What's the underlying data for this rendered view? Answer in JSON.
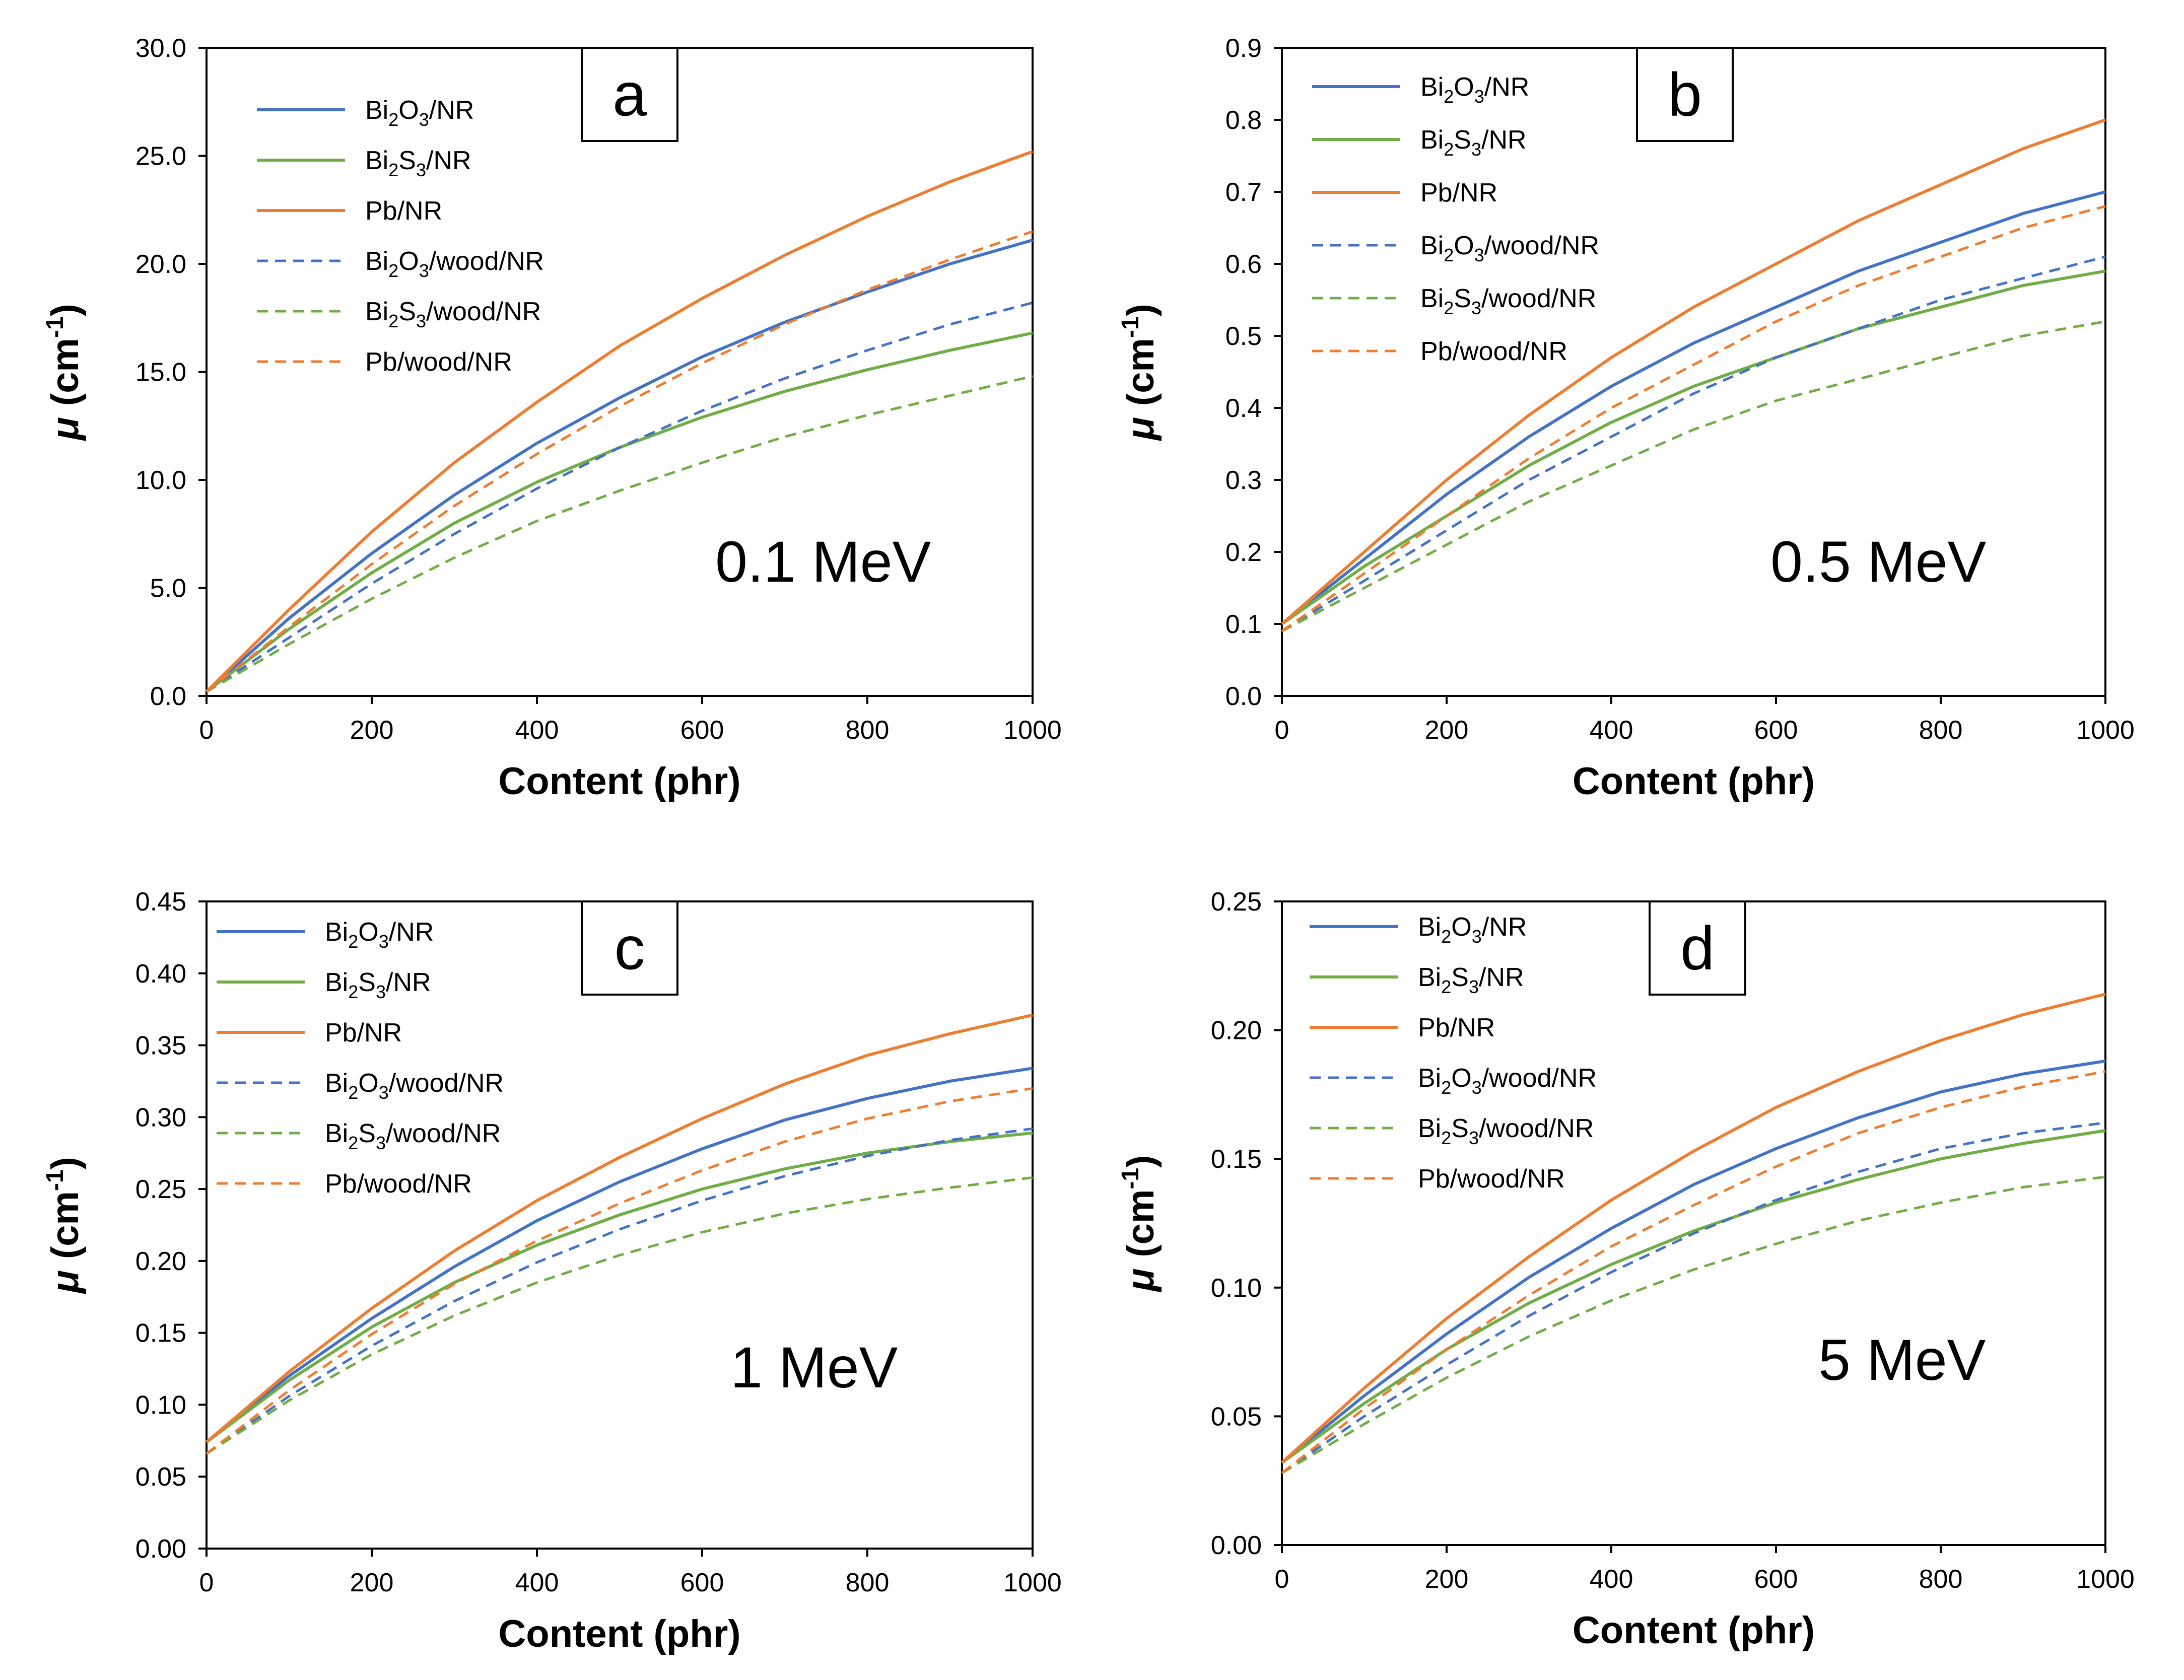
{
  "x_title": "Content (phr)",
  "y_title_symbol": "μ",
  "y_title_unit_pre": "(cm",
  "y_title_unit_sup": "-1",
  "y_title_unit_post": ")",
  "legend_labels": [
    {
      "name": "Bi2O3/NR",
      "segments": [
        [
          "Bi",
          false
        ],
        [
          "2",
          true
        ],
        [
          "O",
          false
        ],
        [
          "3",
          true
        ],
        [
          "/NR",
          false
        ]
      ]
    },
    {
      "name": "Bi2S3/NR",
      "segments": [
        [
          "Bi",
          false
        ],
        [
          "2",
          true
        ],
        [
          "S",
          false
        ],
        [
          "3",
          true
        ],
        [
          "/NR",
          false
        ]
      ]
    },
    {
      "name": "Pb/NR",
      "segments": [
        [
          "Pb/NR",
          false
        ]
      ]
    },
    {
      "name": "Bi2O3/wood/NR",
      "segments": [
        [
          "Bi",
          false
        ],
        [
          "2",
          true
        ],
        [
          "O",
          false
        ],
        [
          "3",
          true
        ],
        [
          "/wood/NR",
          false
        ]
      ]
    },
    {
      "name": "Bi2S3/wood/NR",
      "segments": [
        [
          "Bi",
          false
        ],
        [
          "2",
          true
        ],
        [
          "S",
          false
        ],
        [
          "3",
          true
        ],
        [
          "/wood/NR",
          false
        ]
      ]
    },
    {
      "name": "Pb/wood/NR",
      "segments": [
        [
          "Pb/wood/NR",
          false
        ]
      ]
    }
  ],
  "series_styles": [
    {
      "color": "#4472C4",
      "dashed": false
    },
    {
      "color": "#70AD47",
      "dashed": false
    },
    {
      "color": "#ED7D31",
      "dashed": false
    },
    {
      "color": "#4472C4",
      "dashed": true
    },
    {
      "color": "#70AD47",
      "dashed": true
    },
    {
      "color": "#ED7D31",
      "dashed": true
    }
  ],
  "chart_data": [
    {
      "type": "line",
      "panel_label": "a",
      "energy_label": "0.1 MeV",
      "xlabel": "Content (phr)",
      "ylabel": "μ (cm-1)",
      "xlim": [
        0,
        1000
      ],
      "ylim": [
        0,
        30
      ],
      "x_ticks": [
        0,
        200,
        400,
        600,
        800,
        1000
      ],
      "y_ticks": [
        "0.0",
        "5.0",
        "10.0",
        "15.0",
        "20.0",
        "25.0",
        "30.0"
      ],
      "x": [
        0,
        100,
        200,
        300,
        400,
        500,
        600,
        700,
        800,
        900,
        1000
      ],
      "series": [
        {
          "name": "Bi2O3/NR",
          "values": [
            0.2,
            3.6,
            6.6,
            9.3,
            11.7,
            13.8,
            15.7,
            17.3,
            18.7,
            20.0,
            21.1
          ]
        },
        {
          "name": "Bi2S3/NR",
          "values": [
            0.2,
            3.1,
            5.7,
            8.0,
            9.9,
            11.5,
            12.9,
            14.1,
            15.1,
            16.0,
            16.8
          ]
        },
        {
          "name": "Pb/NR",
          "values": [
            0.2,
            4.0,
            7.6,
            10.8,
            13.6,
            16.2,
            18.4,
            20.4,
            22.2,
            23.8,
            25.2
          ]
        },
        {
          "name": "Bi2O3/wood/NR",
          "values": [
            0.2,
            2.7,
            5.2,
            7.5,
            9.6,
            11.5,
            13.2,
            14.7,
            16.0,
            17.2,
            18.2
          ]
        },
        {
          "name": "Bi2S3/wood/NR",
          "values": [
            0.2,
            2.4,
            4.5,
            6.4,
            8.1,
            9.5,
            10.8,
            12.0,
            13.0,
            13.9,
            14.8
          ]
        },
        {
          "name": "Pb/wood/NR",
          "values": [
            0.2,
            3.2,
            6.1,
            8.8,
            11.2,
            13.4,
            15.4,
            17.2,
            18.8,
            20.2,
            21.5
          ]
        }
      ]
    },
    {
      "type": "line",
      "panel_label": "b",
      "energy_label": "0.5 MeV",
      "xlabel": "Content (phr)",
      "ylabel": "μ (cm-1)",
      "xlim": [
        0,
        1000
      ],
      "ylim": [
        0,
        0.9
      ],
      "x_ticks": [
        0,
        200,
        400,
        600,
        800,
        1000
      ],
      "y_ticks": [
        "0.0",
        "0.1",
        "0.2",
        "0.3",
        "0.4",
        "0.5",
        "0.6",
        "0.7",
        "0.8",
        "0.9"
      ],
      "x": [
        0,
        100,
        200,
        300,
        400,
        500,
        600,
        700,
        800,
        900,
        1000
      ],
      "series": [
        {
          "name": "Bi2O3/NR",
          "values": [
            0.1,
            0.19,
            0.28,
            0.36,
            0.43,
            0.49,
            0.54,
            0.59,
            0.63,
            0.67,
            0.7
          ]
        },
        {
          "name": "Bi2S3/NR",
          "values": [
            0.1,
            0.18,
            0.25,
            0.32,
            0.38,
            0.43,
            0.47,
            0.51,
            0.54,
            0.57,
            0.59
          ]
        },
        {
          "name": "Pb/NR",
          "values": [
            0.1,
            0.2,
            0.3,
            0.39,
            0.47,
            0.54,
            0.6,
            0.66,
            0.71,
            0.76,
            0.8
          ]
        },
        {
          "name": "Bi2O3/wood/NR",
          "values": [
            0.09,
            0.16,
            0.23,
            0.3,
            0.36,
            0.42,
            0.47,
            0.51,
            0.55,
            0.58,
            0.61
          ]
        },
        {
          "name": "Bi2S3/wood/NR",
          "values": [
            0.09,
            0.15,
            0.21,
            0.27,
            0.32,
            0.37,
            0.41,
            0.44,
            0.47,
            0.5,
            0.52
          ]
        },
        {
          "name": "Pb/wood/NR",
          "values": [
            0.09,
            0.17,
            0.25,
            0.33,
            0.4,
            0.46,
            0.52,
            0.57,
            0.61,
            0.65,
            0.68
          ]
        }
      ]
    },
    {
      "type": "line",
      "panel_label": "c",
      "energy_label": "1 MeV",
      "xlabel": "Content (phr)",
      "ylabel": "μ (cm-1)",
      "xlim": [
        0,
        1000
      ],
      "ylim": [
        0,
        0.45
      ],
      "x_ticks": [
        0,
        200,
        400,
        600,
        800,
        1000
      ],
      "y_ticks": [
        "0.00",
        "0.05",
        "0.10",
        "0.15",
        "0.20",
        "0.25",
        "0.30",
        "0.35",
        "0.40",
        "0.45"
      ],
      "x": [
        0,
        100,
        200,
        300,
        400,
        500,
        600,
        700,
        800,
        900,
        1000
      ],
      "series": [
        {
          "name": "Bi2O3/NR",
          "values": [
            0.074,
            0.12,
            0.16,
            0.196,
            0.228,
            0.255,
            0.278,
            0.298,
            0.313,
            0.325,
            0.334
          ]
        },
        {
          "name": "Bi2S3/NR",
          "values": [
            0.074,
            0.117,
            0.154,
            0.185,
            0.211,
            0.232,
            0.25,
            0.264,
            0.275,
            0.283,
            0.289
          ]
        },
        {
          "name": "Pb/NR",
          "values": [
            0.074,
            0.123,
            0.167,
            0.207,
            0.242,
            0.272,
            0.299,
            0.323,
            0.343,
            0.358,
            0.371
          ]
        },
        {
          "name": "Bi2O3/wood/NR",
          "values": [
            0.066,
            0.106,
            0.141,
            0.172,
            0.199,
            0.222,
            0.242,
            0.259,
            0.273,
            0.284,
            0.292
          ]
        },
        {
          "name": "Bi2S3/wood/NR",
          "values": [
            0.066,
            0.103,
            0.135,
            0.162,
            0.185,
            0.204,
            0.22,
            0.233,
            0.243,
            0.251,
            0.258
          ]
        },
        {
          "name": "Pb/wood/NR",
          "values": [
            0.066,
            0.11,
            0.149,
            0.184,
            0.214,
            0.24,
            0.263,
            0.283,
            0.299,
            0.311,
            0.32
          ]
        }
      ]
    },
    {
      "type": "line",
      "panel_label": "d",
      "energy_label": "5 MeV",
      "xlabel": "Content (phr)",
      "ylabel": "μ (cm-1)",
      "xlim": [
        0,
        1000
      ],
      "ylim": [
        0,
        0.25
      ],
      "x_ticks": [
        0,
        200,
        400,
        600,
        800,
        1000
      ],
      "y_ticks": [
        "0.00",
        "0.05",
        "0.10",
        "0.15",
        "0.20",
        "0.25"
      ],
      "x": [
        0,
        100,
        200,
        300,
        400,
        500,
        600,
        700,
        800,
        900,
        1000
      ],
      "series": [
        {
          "name": "Bi2O3/NR",
          "values": [
            0.032,
            0.058,
            0.082,
            0.104,
            0.123,
            0.14,
            0.154,
            0.166,
            0.176,
            0.183,
            0.188
          ]
        },
        {
          "name": "Bi2S3/NR",
          "values": [
            0.032,
            0.055,
            0.076,
            0.094,
            0.109,
            0.122,
            0.133,
            0.142,
            0.15,
            0.156,
            0.161
          ]
        },
        {
          "name": "Pb/NR",
          "values": [
            0.032,
            0.061,
            0.088,
            0.112,
            0.134,
            0.153,
            0.17,
            0.184,
            0.196,
            0.206,
            0.214
          ]
        },
        {
          "name": "Bi2O3/wood/NR",
          "values": [
            0.028,
            0.05,
            0.07,
            0.089,
            0.106,
            0.121,
            0.134,
            0.145,
            0.154,
            0.16,
            0.164
          ]
        },
        {
          "name": "Bi2S3/wood/NR",
          "values": [
            0.028,
            0.047,
            0.065,
            0.081,
            0.095,
            0.107,
            0.117,
            0.126,
            0.133,
            0.139,
            0.143
          ]
        },
        {
          "name": "Pb/wood/NR",
          "values": [
            0.028,
            0.053,
            0.076,
            0.097,
            0.116,
            0.132,
            0.147,
            0.16,
            0.17,
            0.178,
            0.184
          ]
        }
      ]
    }
  ]
}
